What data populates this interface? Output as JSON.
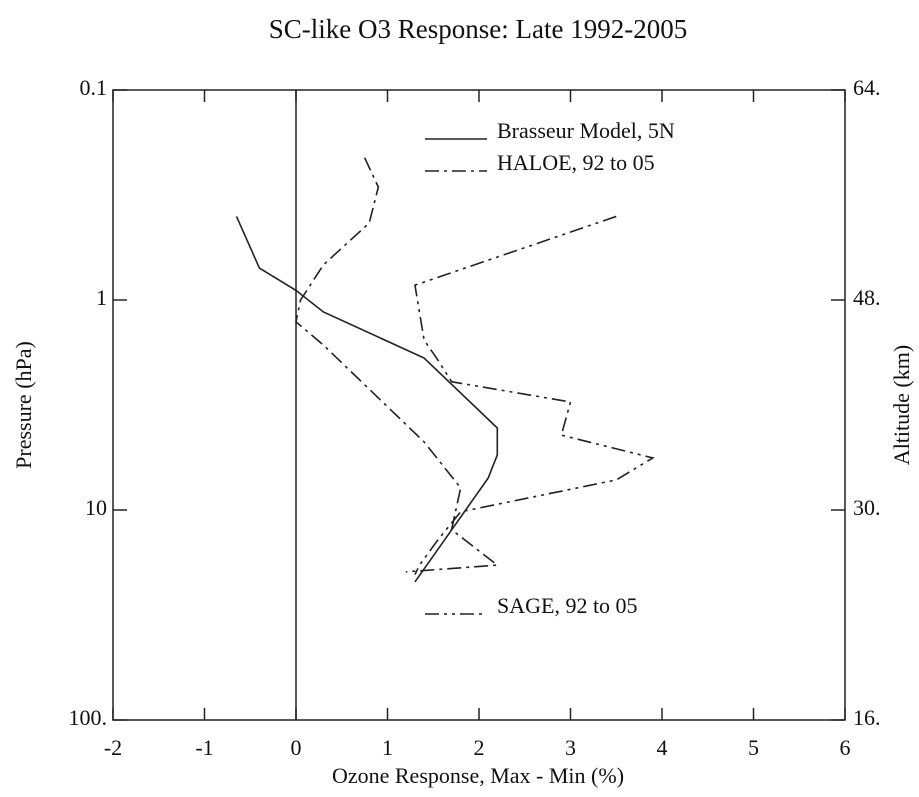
{
  "chart_data": {
    "type": "line",
    "title": "SC-like O3 Response: Late 1992-2005",
    "xlabel": "Ozone Response, Max - Min (%)",
    "ylabel": "Pressure (hPa)",
    "y2label": "Altitude (km)",
    "xlim": [
      -2,
      6
    ],
    "xticks": [
      -2,
      -1,
      0,
      1,
      2,
      3,
      4,
      5,
      6
    ],
    "ylim": [
      100,
      0.1
    ],
    "ylog": true,
    "yticks": [
      0.1,
      1,
      10,
      {
        "value": 100,
        "label": "100."
      }
    ],
    "y2ticks": [
      {
        "value": 64,
        "label": "64."
      },
      {
        "value": 48,
        "label": "48."
      },
      {
        "value": 30,
        "label": "30."
      },
      {
        "value": 16,
        "label": "16."
      }
    ],
    "color": "#000000",
    "series": [
      {
        "name": "Brasseur Model, 5N",
        "style": "solid",
        "color": "#222222",
        "values": [
          -0.65,
          -0.4,
          0.0,
          0.3,
          1.4,
          2.2,
          2.2,
          2.1,
          1.3
        ],
        "pressure": [
          0.4,
          0.705,
          0.9,
          1.14,
          1.89,
          4.07,
          5.47,
          7.05,
          22.0
        ]
      },
      {
        "name": "HALOE, 92 to 05",
        "style": "dash-dot",
        "color": "#222222",
        "values": [
          0.75,
          0.9,
          0.8,
          0.3,
          0.05,
          0.0,
          0.3,
          1.4,
          1.8,
          1.7,
          2.2,
          1.2
        ],
        "pressure": [
          0.21,
          0.29,
          0.43,
          0.68,
          1.0,
          1.27,
          1.64,
          4.74,
          7.85,
          12.4,
          18.3,
          19.7
        ]
      },
      {
        "name": "SAGE, 92 to 05",
        "style": "dash-dot-dot",
        "color": "#222222",
        "values": [
          3.5,
          1.3,
          1.4,
          1.55,
          1.7,
          3.0,
          2.9,
          3.9,
          3.5,
          1.8,
          1.55,
          1.35,
          1.3
        ],
        "pressure": [
          0.4,
          0.85,
          1.55,
          1.93,
          2.45,
          3.06,
          4.4,
          5.65,
          7.19,
          10.2,
          13.9,
          18.3,
          20.3
        ]
      }
    ]
  }
}
